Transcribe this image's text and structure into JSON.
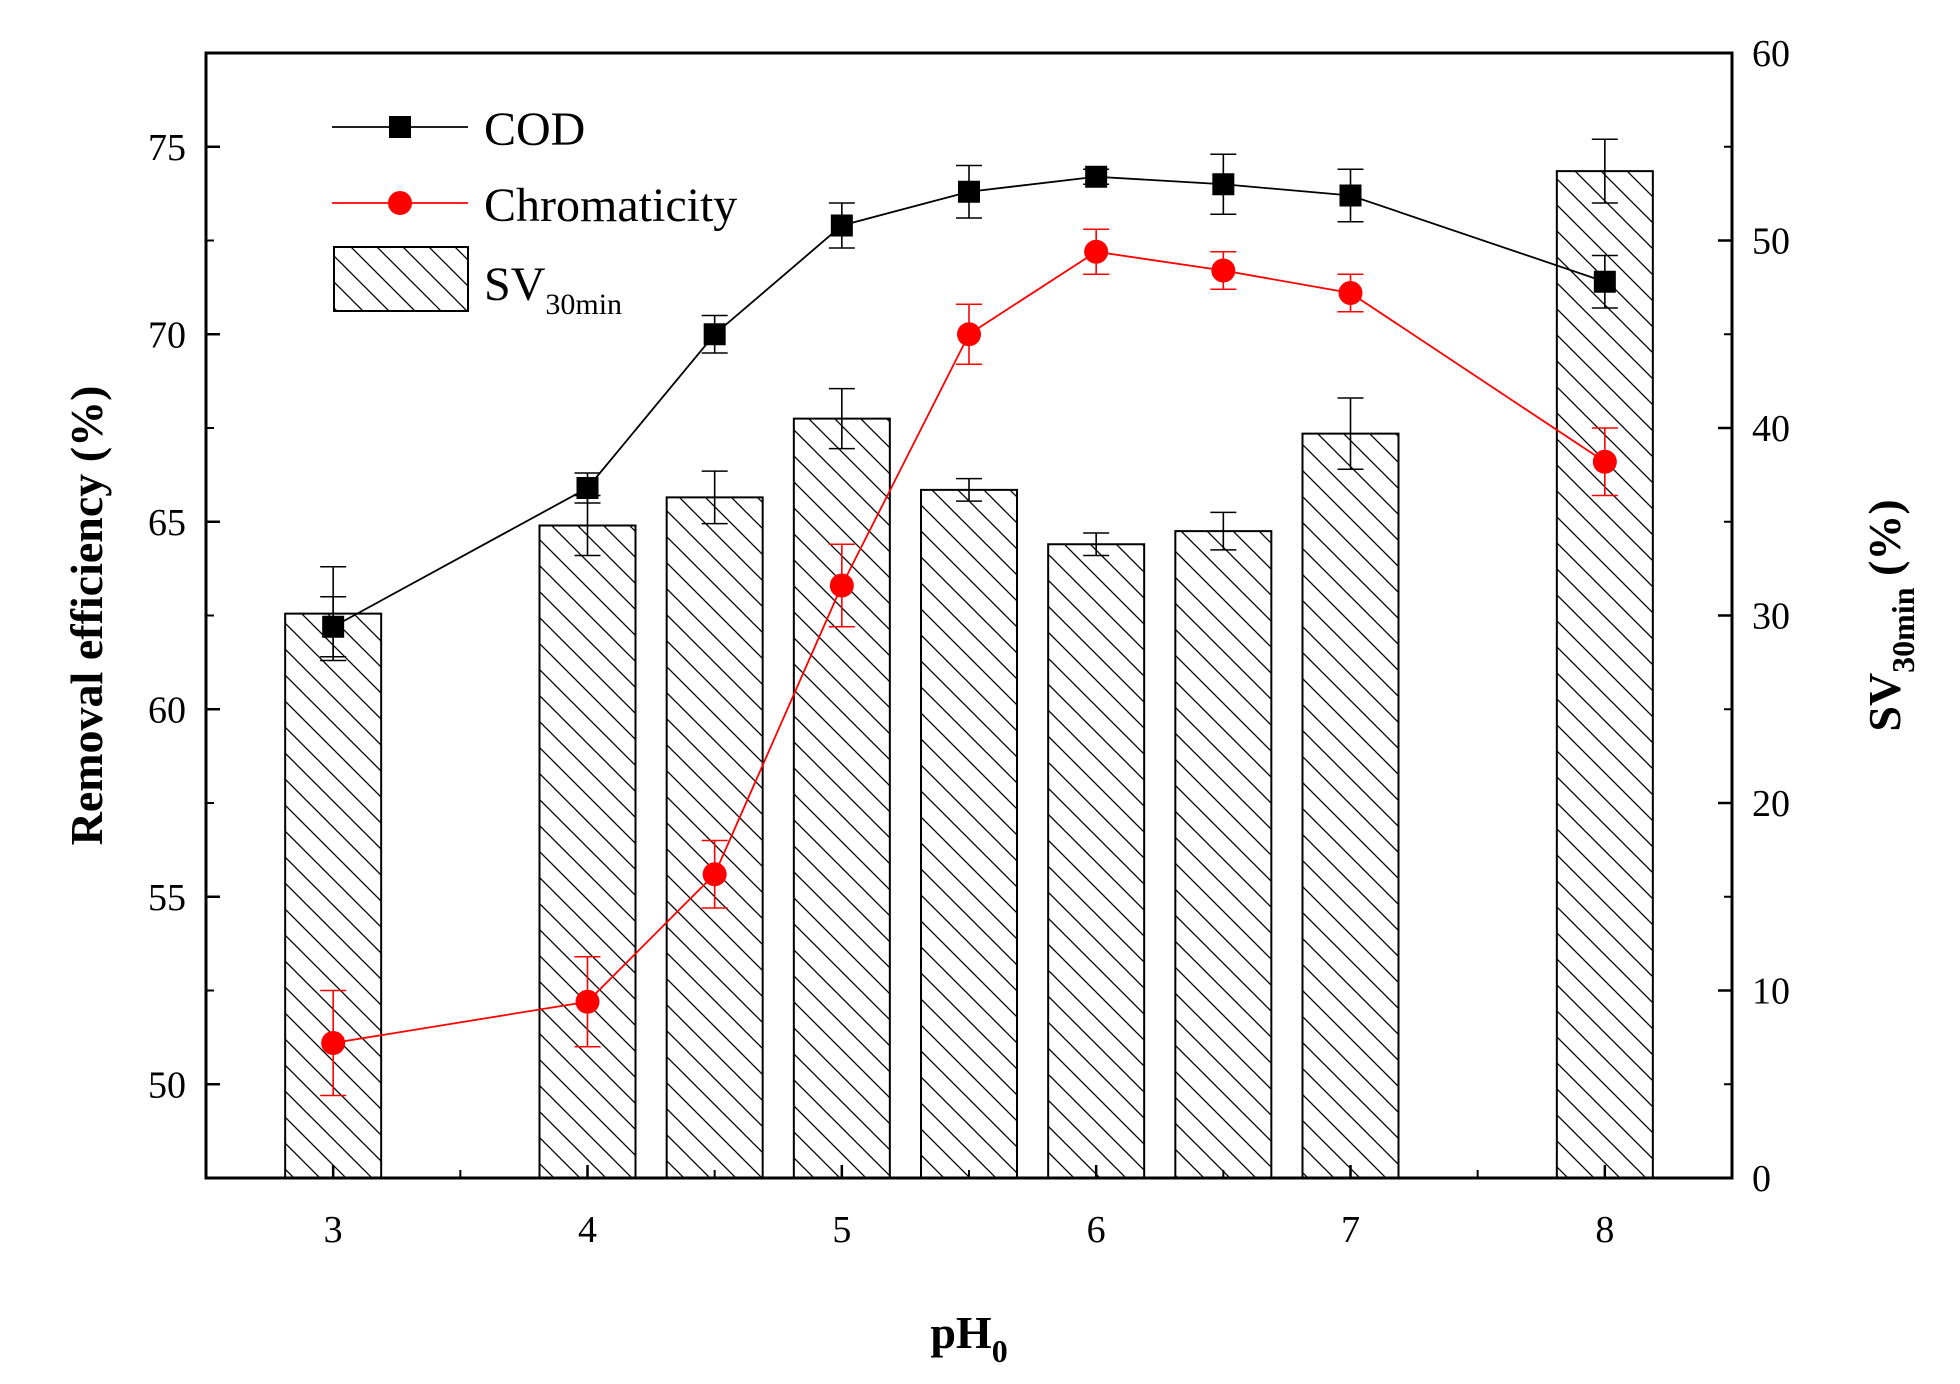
{
  "chart_data": {
    "type": "bar+line",
    "xlabel": {
      "main": "pH",
      "sub": "0"
    },
    "ylabel_left": "Removal efficiency (%)",
    "ylabel_right": {
      "main": "SV",
      "sub": "30min",
      "suffix": " (%)"
    },
    "x_ticks": [
      3,
      4,
      5,
      6,
      7,
      8
    ],
    "x_tick_labels": [
      "3",
      "4",
      "5",
      "6",
      "7",
      "8"
    ],
    "x_range": [
      2.5,
      8.5
    ],
    "y_left_range": [
      47.5,
      77.5
    ],
    "y_left_ticks": [
      50,
      55,
      60,
      65,
      70,
      75
    ],
    "y_left_tick_labels": [
      "50",
      "55",
      "60",
      "65",
      "70",
      "75"
    ],
    "y_right_range": [
      0,
      60
    ],
    "y_right_ticks": [
      0,
      10,
      20,
      30,
      40,
      50,
      60
    ],
    "y_right_tick_labels": [
      "0",
      "10",
      "20",
      "30",
      "40",
      "50",
      "60"
    ],
    "x": [
      3,
      4,
      4.5,
      5,
      5.5,
      6,
      6.5,
      7,
      8
    ],
    "series": [
      {
        "name": "COD",
        "kind": "line",
        "axis": "left",
        "marker": "square",
        "color": "#000000",
        "values": [
          62.2,
          65.9,
          70.0,
          72.9,
          73.8,
          74.2,
          74.0,
          73.7,
          71.4
        ],
        "errors": [
          0.8,
          0.4,
          0.5,
          0.6,
          0.7,
          0.2,
          0.8,
          0.7,
          0.7
        ]
      },
      {
        "name": "Chromaticity",
        "kind": "line",
        "axis": "left",
        "marker": "circle",
        "color": "#ff0000",
        "values": [
          51.1,
          52.2,
          55.6,
          63.3,
          70.0,
          72.2,
          71.7,
          71.1,
          66.6
        ],
        "errors": [
          1.4,
          1.2,
          0.9,
          1.1,
          0.8,
          0.6,
          0.5,
          0.5,
          0.9
        ]
      },
      {
        "name": "SV",
        "name_sub": "30min",
        "kind": "bar",
        "axis": "right",
        "pattern": "diagonal-hatch",
        "values": [
          30.1,
          34.8,
          36.3,
          40.5,
          36.7,
          33.8,
          34.5,
          39.7,
          53.7
        ],
        "errors": [
          2.5,
          1.6,
          1.4,
          1.6,
          0.6,
          0.6,
          1.0,
          1.9,
          1.7
        ]
      }
    ],
    "legend_position": "top-left",
    "grid": false
  }
}
